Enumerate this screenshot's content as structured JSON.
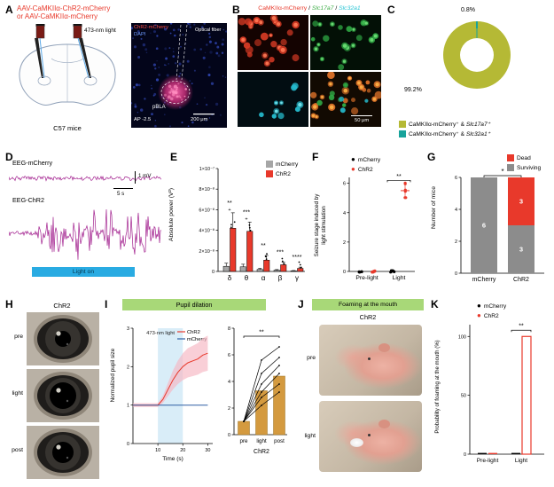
{
  "panelA": {
    "label": "A",
    "title_line1": "AAV-CaMKIIα-ChR2-mCherry",
    "title_line2": "or AAV-CaMKIIα-mCherry",
    "light_label": "473-nm light",
    "mouse_label": "C57 mice",
    "image": {
      "label_mcherry": "ChR2-mCherry",
      "label_dapi": "DAPI",
      "fiber_label": "Optical fiber",
      "region_label": "pBLA",
      "ap_label": "AP -2.5",
      "scale_label": "200 μm"
    }
  },
  "panelB": {
    "label": "B",
    "title_mcherry": "CaMKIIα-mCherry",
    "title_sep1": " / ",
    "title_slc17a7": "Slc17a7",
    "title_sep2": " / ",
    "title_slc32a1": "Slc32a1",
    "scale_label": "50 μm"
  },
  "panelC": {
    "label": "C",
    "pct_small": "0.8%",
    "pct_large": "99.2%",
    "legend": [
      {
        "prefix": "CaMKIIα-mCherry⁺ & ",
        "gene": "Slc17a7⁺",
        "color": "#b5b935"
      },
      {
        "prefix": "CaMKIIα-mCherry⁺ & ",
        "gene": "Slc32a1⁺",
        "color": "#18a39b"
      }
    ]
  },
  "panelD": {
    "label": "D",
    "trace1_label": "EEG-mCherry",
    "trace2_label": "EEG-ChR2",
    "scale_v": "1 mV",
    "scale_h": "5 s",
    "light_label": "Light on",
    "trace_color": "#a2208e",
    "light_color": "#29abe2"
  },
  "panelE": {
    "label": "E"
  },
  "panelF": {
    "label": "F"
  },
  "panelG": {
    "label": "G"
  },
  "panelH": {
    "label": "H",
    "title": "ChR2",
    "rows": [
      "pre",
      "light",
      "post"
    ]
  },
  "panelI": {
    "label": "I",
    "header": "Pupil dilation"
  },
  "panelJ": {
    "label": "J",
    "header": "Foaming at the mouth",
    "title": "ChR2",
    "rows": [
      "pre",
      "light"
    ]
  },
  "panelK": {
    "label": "K"
  },
  "chart_data": {
    "C_donut": {
      "type": "pie",
      "donut": true,
      "labels": [
        "CaMKIIα-mCherry⁺ & Slc17a7⁺",
        "CaMKIIα-mCherry⁺ & Slc32a1⁺"
      ],
      "values": [
        99.2,
        0.8
      ],
      "colors": [
        "#b5b935",
        "#18a39b"
      ]
    },
    "E": {
      "type": "bar",
      "ylabel": "Absolute power (V²)",
      "categories": [
        "δ",
        "θ",
        "α",
        "β",
        "γ"
      ],
      "series": [
        {
          "name": "mCherry",
          "color": "#a6a6a6",
          "values": [
            0.5,
            0.45,
            0.2,
            0.12,
            0.06
          ],
          "errors": [
            0.3,
            0.25,
            0.1,
            0.06,
            0.03
          ]
        },
        {
          "name": "ChR2",
          "color": "#e8392b",
          "values": [
            4.2,
            3.9,
            1.1,
            0.65,
            0.3
          ],
          "errors": [
            1.5,
            0.9,
            0.45,
            0.25,
            0.12
          ]
        }
      ],
      "unit_scale": "1e-8",
      "ymax": 10,
      "yticks": [
        {
          "v": 0,
          "t": "0"
        },
        {
          "v": 2,
          "t": "2×10⁻⁸"
        },
        {
          "v": 4,
          "t": "4×10⁻⁸"
        },
        {
          "v": 6,
          "t": "6×10⁻⁸"
        },
        {
          "v": 8,
          "t": "8×10⁻⁸"
        },
        {
          "v": 10,
          "t": "1×10⁻⁷"
        }
      ],
      "significance": [
        "**",
        "***",
        "**",
        "***",
        "****"
      ],
      "outlier_marks": [
        "+",
        "+",
        "",
        "",
        ""
      ]
    },
    "F": {
      "type": "scatter",
      "ylabel_line1": "Seizure stage induced by",
      "ylabel_line2": "light stimulation",
      "categories": [
        "Pre-light",
        "Light"
      ],
      "legend": [
        {
          "name": "mCherry",
          "color": "#000000"
        },
        {
          "name": "ChR2",
          "color": "#e8392b"
        }
      ],
      "points": {
        "mCherry_pre": [
          0,
          0,
          0,
          0,
          0,
          0
        ],
        "ChR2_pre": [
          0,
          0,
          0,
          0,
          0,
          0
        ],
        "mCherry_light": [
          0,
          0,
          0,
          0,
          0,
          0
        ],
        "ChR2_light": [
          5,
          5,
          5.5,
          5.5,
          6,
          6
        ]
      },
      "ymax": 6,
      "yticks": [
        0,
        2,
        4,
        6
      ],
      "significance": "**"
    },
    "G": {
      "type": "stacked-bar",
      "ylabel": "Number of mice",
      "categories": [
        "mCherry",
        "ChR2"
      ],
      "legend": [
        {
          "name": "Dead",
          "color": "#e8392b"
        },
        {
          "name": "Surviving",
          "color": "#8c8c8c"
        }
      ],
      "surviving": [
        6,
        3
      ],
      "dead": [
        0,
        3
      ],
      "yticks": [
        0,
        2,
        4,
        6
      ],
      "ymax": 6,
      "significance": "*"
    },
    "I_line": {
      "type": "line",
      "xlabel": "Time (s)",
      "ylabel": "Normalized pupil size",
      "xticks": [
        10,
        20,
        30
      ],
      "xmax": 32,
      "yticks": [
        0,
        1,
        2,
        3
      ],
      "ymax": 3,
      "light_window": [
        10,
        20
      ],
      "light_label": "473-nm light",
      "series": [
        {
          "name": "ChR2",
          "color": "#e8392b",
          "x": [
            0,
            2,
            4,
            6,
            8,
            10,
            12,
            14,
            16,
            18,
            20,
            22,
            24,
            26,
            28,
            30
          ],
          "y": [
            1,
            1,
            1,
            1,
            1,
            1,
            1.15,
            1.4,
            1.65,
            1.85,
            2.0,
            2.1,
            2.15,
            2.2,
            2.3,
            2.35
          ]
        },
        {
          "name": "mCherry",
          "color": "#2e5fa3",
          "x": [
            0,
            30
          ],
          "y": [
            1,
            1
          ]
        }
      ]
    },
    "I_prepost": {
      "type": "bar",
      "categories": [
        "pre",
        "light",
        "post"
      ],
      "group_label": "ChR2",
      "bar_color": "#d49a3f",
      "values": [
        1,
        3.3,
        4.4
      ],
      "lines": [
        [
          1,
          2.2,
          3.2
        ],
        [
          1,
          2.8,
          3.8
        ],
        [
          1,
          3.2,
          4.6
        ],
        [
          1,
          3.8,
          5.2
        ],
        [
          1,
          4.6,
          5.8
        ],
        [
          1,
          5.6,
          6.6
        ]
      ],
      "yticks": [
        0,
        2,
        4,
        6,
        8
      ],
      "ymax": 8,
      "significance": "**"
    },
    "K": {
      "type": "bar",
      "ylabel": "Probability of foaming at the mouth (%)",
      "categories": [
        "Pre-light",
        "Light"
      ],
      "series": [
        {
          "name": "mCherry",
          "color": "#000000",
          "values": [
            0,
            0
          ]
        },
        {
          "name": "ChR2",
          "color": "#e8392b",
          "values": [
            0,
            100
          ]
        }
      ],
      "yticks": [
        0,
        50,
        100
      ],
      "ymax": 110,
      "significance": "**"
    }
  }
}
